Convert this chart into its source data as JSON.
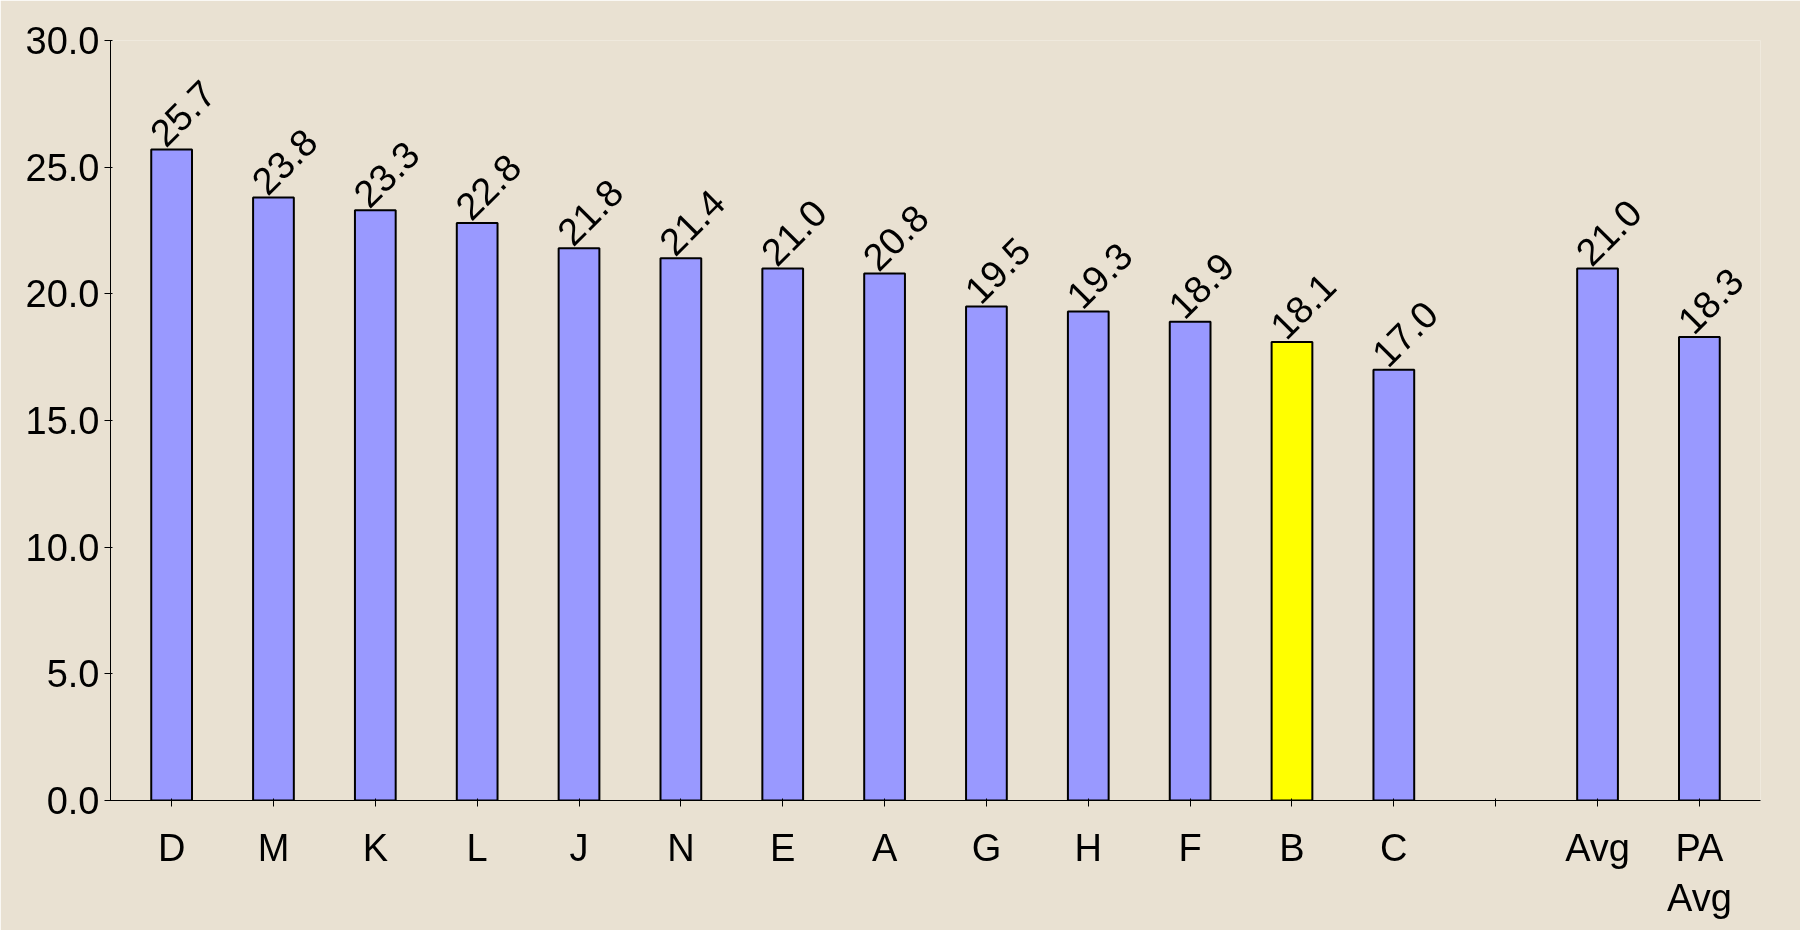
{
  "chart_data": {
    "type": "bar",
    "categories": [
      "D",
      "M",
      "K",
      "L",
      "J",
      "N",
      "E",
      "A",
      "G",
      "H",
      "F",
      "B",
      "C",
      null,
      "Avg",
      "PA Avg"
    ],
    "values": [
      25.7,
      23.8,
      23.3,
      22.8,
      21.8,
      21.4,
      21.0,
      20.8,
      19.5,
      19.3,
      18.9,
      18.1,
      17.0,
      null,
      21.0,
      18.3
    ],
    "colors": [
      "#9999ff",
      "#9999ff",
      "#9999ff",
      "#9999ff",
      "#9999ff",
      "#9999ff",
      "#9999ff",
      "#9999ff",
      "#9999ff",
      "#9999ff",
      "#9999ff",
      "#ffff00",
      "#9999ff",
      "#9999ff",
      "#9999ff",
      "#9999ff"
    ],
    "value_labels": [
      "25.7",
      "23.8",
      "23.3",
      "22.8",
      "21.8",
      "21.4",
      "21.0",
      "20.8",
      "19.5",
      "19.3",
      "18.9",
      "18.1",
      "17.0",
      null,
      "21.0",
      "18.3"
    ],
    "ylim": [
      0,
      30
    ],
    "yticks": [
      {
        "value": 0,
        "label": "0.0"
      },
      {
        "value": 5,
        "label": "5.0"
      },
      {
        "value": 10,
        "label": "10.0"
      },
      {
        "value": 15,
        "label": "15.0"
      },
      {
        "value": 20,
        "label": "20.0"
      },
      {
        "value": 25,
        "label": "25.0"
      },
      {
        "value": 30,
        "label": "30.0"
      }
    ],
    "grid": false
  }
}
